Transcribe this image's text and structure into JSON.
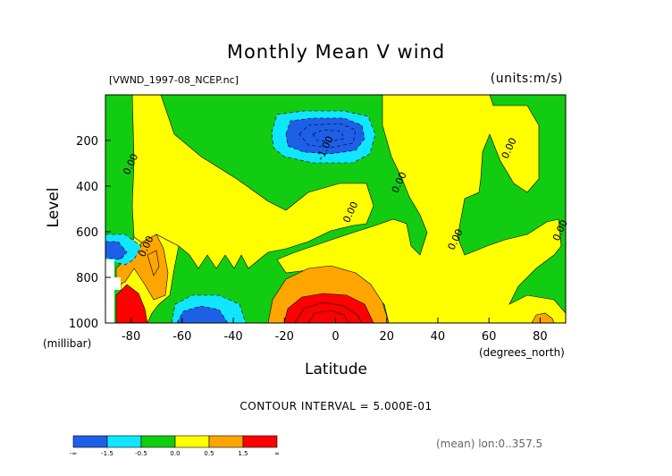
{
  "title": "Monthly Mean V wind",
  "subtitle_left": "[VWND_1997-08_NCEP.nc]",
  "subtitle_right": "(units:m/s)",
  "footer_interval": "CONTOUR INTERVAL = 5.000E-01",
  "footer_mean": "(mean) lon:0..357.5",
  "colors": {
    "below_-1.5": "#1e5fe8",
    "-1.5_to_-0.5": "#10e6ff",
    "-0.5_to_0.0": "#12cc12",
    "0.0_to_0.5": "#ffff00",
    "0.5_to_1.5": "#ffa500",
    "above_1.5": "#ff0000"
  },
  "chart_data": {
    "type": "heatmap",
    "title": "Monthly Mean V wind",
    "xlabel": "Latitude",
    "x_units": "(degrees_north)",
    "ylabel": "Level",
    "y_units": "(millibar)",
    "xlim": [
      -90,
      90
    ],
    "ylim": [
      1000,
      0
    ],
    "y_reversed": true,
    "x_ticks": [
      -80,
      -60,
      -40,
      -20,
      0,
      20,
      40,
      60,
      80
    ],
    "y_ticks": [
      200,
      400,
      600,
      800,
      1000
    ],
    "contour_interval": 0.5,
    "contour_labels": [
      {
        "text": "0.00",
        "lat": -79,
        "lev": 310
      },
      {
        "text": "0.00",
        "lat": -73,
        "lev": 670
      },
      {
        "text": "-1.00",
        "lat": -3,
        "lev": 240
      },
      {
        "text": "0.00",
        "lat": 7,
        "lev": 520
      },
      {
        "text": "0.00",
        "lat": 26,
        "lev": 390
      },
      {
        "text": "0.00",
        "lat": 48,
        "lev": 640
      },
      {
        "text": "0.00",
        "lat": 69,
        "lev": 240
      },
      {
        "text": "0.00",
        "lat": 89,
        "lev": 600
      }
    ],
    "legend": {
      "boundaries": [
        "-∞",
        "-1.5",
        "-0.5",
        "0.0",
        "0.5",
        "1.5",
        "∞"
      ],
      "colors": [
        "#1e5fe8",
        "#10e6ff",
        "#12cc12",
        "#ffff00",
        "#ffa500",
        "#ff0000"
      ]
    }
  }
}
